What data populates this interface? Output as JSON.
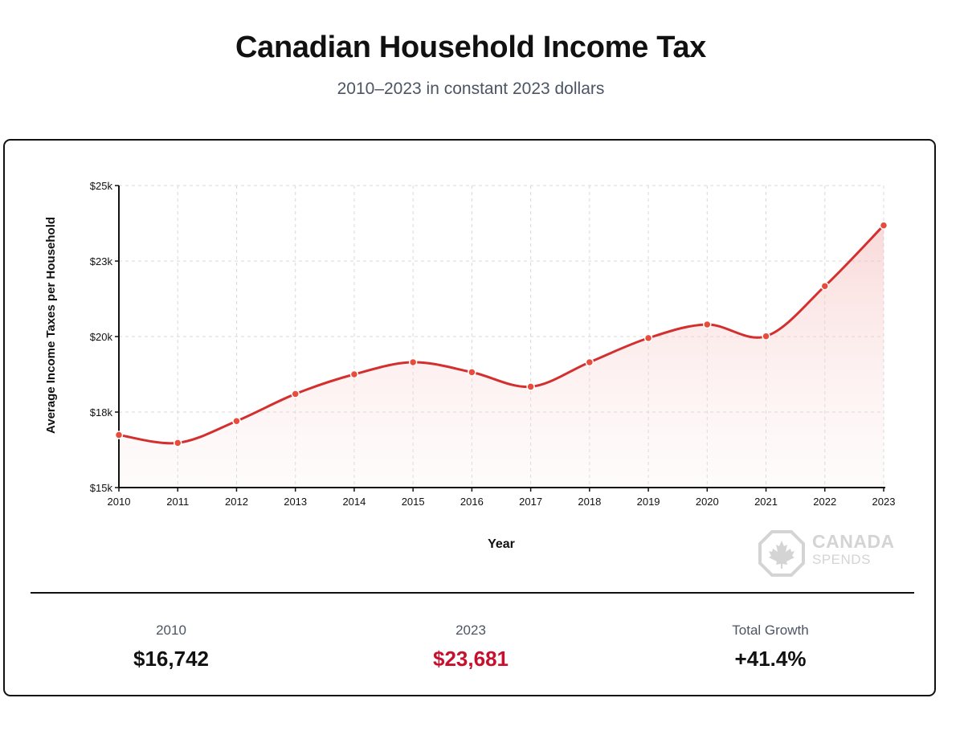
{
  "header": {
    "title": "Canadian Household Income Tax",
    "subtitle": "2010–2023 in constant 2023 dollars"
  },
  "colors": {
    "line": "#d32f2f",
    "point": "#e74c3c",
    "accent_red": "#c8102e",
    "grid": "#d9d9d9"
  },
  "chart_data": {
    "type": "area",
    "title": "Canadian Household Income Tax",
    "xlabel": "Year",
    "ylabel": "Average Income Taxes per Household",
    "x": [
      2010,
      2011,
      2012,
      2013,
      2014,
      2015,
      2016,
      2017,
      2018,
      2019,
      2020,
      2021,
      2022,
      2023
    ],
    "values": [
      16742,
      16480,
      17200,
      18100,
      18750,
      19150,
      18820,
      18340,
      19150,
      19950,
      20400,
      20010,
      21670,
      23681
    ],
    "ylim": [
      15000,
      25000
    ],
    "yticks": [
      15000,
      17500,
      20000,
      22500,
      25000
    ],
    "ytick_labels": [
      "$15k",
      "$18k",
      "$20k",
      "$23k",
      "$25k"
    ],
    "xtick_labels": [
      "2010",
      "2011",
      "2012",
      "2013",
      "2014",
      "2015",
      "2016",
      "2017",
      "2018",
      "2019",
      "2020",
      "2021",
      "2022",
      "2023"
    ],
    "grid": true
  },
  "logo": {
    "line1": "CANADA",
    "line2": "SPENDS"
  },
  "stats": [
    {
      "label": "2010",
      "value": "$16,742"
    },
    {
      "label": "2023",
      "value": "$23,681"
    },
    {
      "label": "Total Growth",
      "value": "+41.4%"
    }
  ]
}
